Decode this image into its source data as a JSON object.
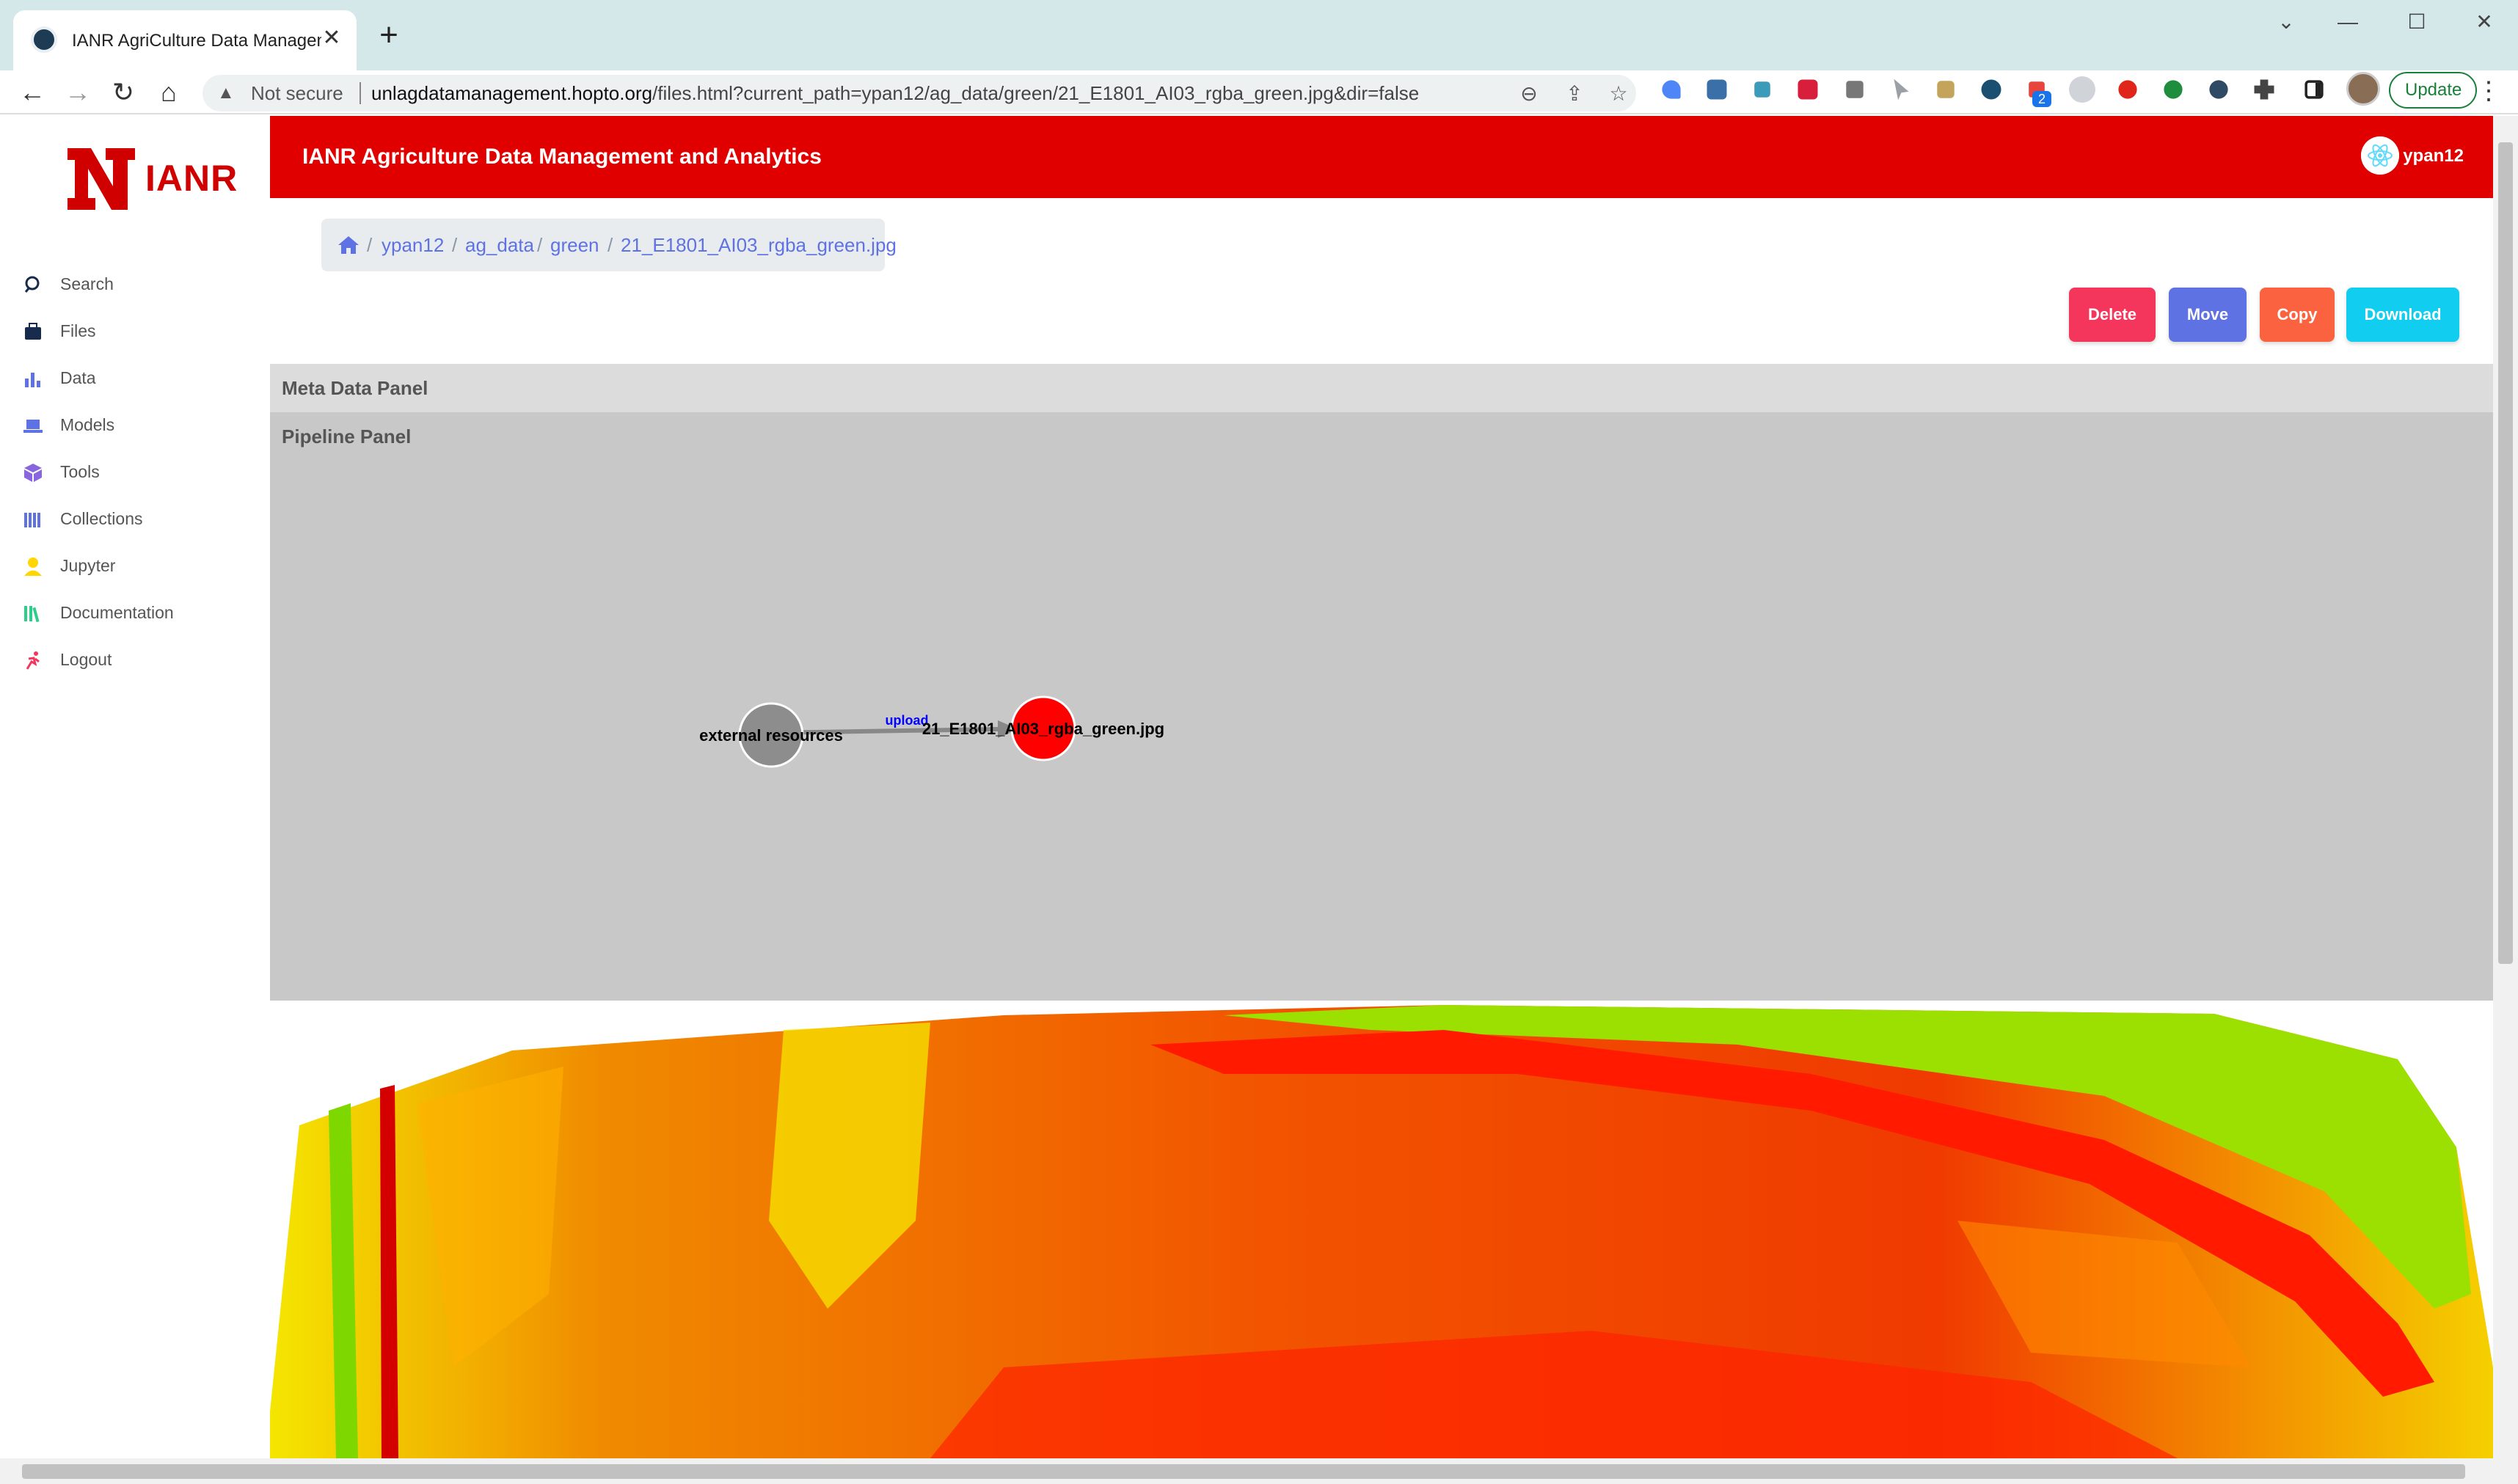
{
  "browser": {
    "tab_title": "IANR AgriCulture Data Management and Analytics",
    "close_glyph": "✕",
    "new_tab_glyph": "+",
    "security_label": "Not secure",
    "url_host": "unlagdatamanagement.hopto.org",
    "url_path": "/files.html?current_path=ypan12/ag_data/green/21_E1801_AI03_rgba_green.jpg&dir=false",
    "extension_badge": "2",
    "update_label": "Update"
  },
  "sidebar": {
    "logo_text": "IANR",
    "items": [
      {
        "label": "Search",
        "icon": "search-icon",
        "color": "#172b4d"
      },
      {
        "label": "Files",
        "icon": "briefcase-icon",
        "color": "#172b4d"
      },
      {
        "label": "Data",
        "icon": "bar-chart-icon",
        "color": "#5e72e4"
      },
      {
        "label": "Models",
        "icon": "laptop-icon",
        "color": "#5e72e4"
      },
      {
        "label": "Tools",
        "icon": "box-icon",
        "color": "#8965e0"
      },
      {
        "label": "Collections",
        "icon": "books-icon",
        "color": "#5e72e4"
      },
      {
        "label": "Jupyter",
        "icon": "user-icon",
        "color": "#ffd600"
      },
      {
        "label": "Documentation",
        "icon": "library-icon",
        "color": "#2dce89"
      },
      {
        "label": "Logout",
        "icon": "run-icon",
        "color": "#f5365c"
      }
    ]
  },
  "header": {
    "title": "IANR Agriculture Data Management and Analytics",
    "username": "ypan12"
  },
  "breadcrumb": {
    "items": [
      "ypan12",
      "ag_data",
      "green",
      "21_E1801_AI03_rgba_green.jpg"
    ],
    "separator": "/"
  },
  "actions": {
    "delete": "Delete",
    "move": "Move",
    "copy": "Copy",
    "download": "Download"
  },
  "panels": {
    "meta_title": "Meta Data Panel",
    "pipeline_title": "Pipeline Panel"
  },
  "pipeline": {
    "source_node": "external resources",
    "edge_label": "upload",
    "target_node": "21_E1801_AI03_rgba_green.jpg"
  },
  "colors": {
    "brand_red": "#e00000",
    "delete": "#f5365c",
    "move": "#5e72e4",
    "copy": "#fb6340",
    "download": "#11cdef"
  }
}
